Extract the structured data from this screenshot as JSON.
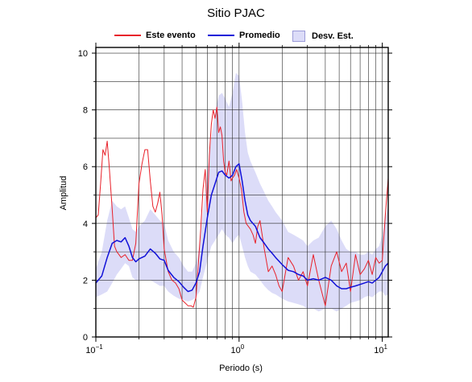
{
  "chart_data": {
    "type": "line",
    "title": "Sitio PJAC",
    "xlabel": "Periodo (s)",
    "ylabel": "Amplitud",
    "x_scale": "log",
    "xlim": [
      0.1,
      11.0
    ],
    "ylim": [
      0,
      10.2
    ],
    "y_ticks": [
      "0",
      "2",
      "4",
      "6",
      "8",
      "10"
    ],
    "x_ticks": [
      {
        "base": "10",
        "exp": "−1",
        "value": 0.1
      },
      {
        "base": "10",
        "exp": "0",
        "value": 1
      },
      {
        "base": "10",
        "exp": "1",
        "value": 10
      }
    ],
    "grid": true,
    "legend_position": "top-center",
    "legend": [
      {
        "label": "Este evento",
        "color": "#e8212a",
        "kind": "line"
      },
      {
        "label": "Promedio",
        "color": "#1010d8",
        "kind": "line"
      },
      {
        "label": "Desv. Est.",
        "color": "#dcdcf8",
        "kind": "band"
      }
    ],
    "series": [
      {
        "name": "Este evento",
        "color": "#e8212a",
        "x": [
          0.1,
          0.104,
          0.108,
          0.112,
          0.116,
          0.12,
          0.124,
          0.13,
          0.135,
          0.14,
          0.145,
          0.15,
          0.16,
          0.17,
          0.18,
          0.19,
          0.2,
          0.21,
          0.22,
          0.23,
          0.24,
          0.25,
          0.26,
          0.27,
          0.28,
          0.29,
          0.3,
          0.32,
          0.34,
          0.36,
          0.38,
          0.4,
          0.42,
          0.44,
          0.46,
          0.48,
          0.5,
          0.52,
          0.54,
          0.56,
          0.58,
          0.6,
          0.62,
          0.64,
          0.66,
          0.68,
          0.7,
          0.72,
          0.74,
          0.76,
          0.78,
          0.8,
          0.82,
          0.85,
          0.88,
          0.9,
          0.93,
          0.96,
          1.0,
          1.04,
          1.08,
          1.12,
          1.16,
          1.2,
          1.25,
          1.3,
          1.35,
          1.4,
          1.5,
          1.6,
          1.7,
          1.8,
          1.9,
          2.0,
          2.2,
          2.4,
          2.6,
          2.8,
          3.0,
          3.3,
          3.6,
          4.0,
          4.4,
          4.8,
          5.2,
          5.6,
          6.0,
          6.5,
          7.0,
          7.5,
          8.0,
          8.5,
          9.0,
          9.5,
          10.0,
          10.5,
          11.0
        ],
        "y": [
          4.2,
          4.3,
          5.4,
          6.6,
          6.4,
          6.9,
          6.0,
          4.5,
          3.2,
          3.0,
          2.9,
          2.8,
          2.9,
          2.7,
          2.7,
          3.3,
          5.4,
          6.1,
          6.6,
          6.6,
          5.5,
          4.6,
          4.4,
          4.7,
          5.1,
          4.3,
          3.1,
          2.3,
          2.0,
          1.9,
          1.7,
          1.3,
          1.2,
          1.1,
          1.1,
          1.05,
          1.4,
          2.6,
          3.8,
          5.2,
          5.9,
          4.4,
          6.4,
          7.5,
          8.0,
          7.7,
          8.1,
          7.2,
          7.4,
          7.1,
          6.2,
          5.8,
          5.7,
          6.2,
          5.5,
          5.6,
          5.7,
          5.9,
          5.6,
          5.2,
          4.4,
          4.0,
          3.9,
          3.8,
          3.6,
          3.3,
          3.9,
          4.1,
          3.1,
          2.3,
          2.5,
          2.2,
          1.8,
          1.6,
          2.8,
          2.5,
          2.0,
          2.3,
          1.8,
          2.9,
          2.0,
          1.1,
          2.5,
          3.0,
          2.3,
          2.6,
          1.6,
          2.9,
          2.2,
          2.4,
          2.7,
          2.2,
          2.8,
          2.6,
          2.7,
          4.3,
          5.6
        ]
      },
      {
        "name": "Promedio",
        "color": "#1010d8",
        "x": [
          0.1,
          0.11,
          0.12,
          0.13,
          0.14,
          0.15,
          0.16,
          0.17,
          0.18,
          0.19,
          0.2,
          0.22,
          0.24,
          0.26,
          0.28,
          0.3,
          0.32,
          0.35,
          0.38,
          0.41,
          0.44,
          0.47,
          0.5,
          0.53,
          0.56,
          0.6,
          0.64,
          0.68,
          0.72,
          0.76,
          0.8,
          0.85,
          0.9,
          0.95,
          1.0,
          1.05,
          1.1,
          1.15,
          1.2,
          1.3,
          1.4,
          1.5,
          1.6,
          1.7,
          1.8,
          2.0,
          2.2,
          2.4,
          2.6,
          2.8,
          3.0,
          3.3,
          3.6,
          4.0,
          4.4,
          4.8,
          5.2,
          5.6,
          6.0,
          6.5,
          7.0,
          7.5,
          8.0,
          8.5,
          9.0,
          9.5,
          10.0,
          10.5,
          11.0
        ],
        "y": [
          1.9,
          2.15,
          2.8,
          3.3,
          3.4,
          3.35,
          3.5,
          3.2,
          2.8,
          2.65,
          2.75,
          2.85,
          3.1,
          2.95,
          2.75,
          2.7,
          2.35,
          2.1,
          1.95,
          1.75,
          1.6,
          1.65,
          1.9,
          2.3,
          3.2,
          4.2,
          5.0,
          5.4,
          5.8,
          5.85,
          5.7,
          5.6,
          5.7,
          6.0,
          6.1,
          5.5,
          4.8,
          4.3,
          4.1,
          3.9,
          3.5,
          3.3,
          3.1,
          2.95,
          2.8,
          2.55,
          2.35,
          2.3,
          2.2,
          2.15,
          2.0,
          2.05,
          2.0,
          2.1,
          2.0,
          1.8,
          1.7,
          1.7,
          1.75,
          1.8,
          1.85,
          1.9,
          1.95,
          1.9,
          2.0,
          2.1,
          2.3,
          2.5,
          2.6
        ]
      }
    ],
    "band": {
      "name": "Desv. Est.",
      "color": "#dcdcf8",
      "x": [
        0.1,
        0.11,
        0.12,
        0.13,
        0.14,
        0.15,
        0.16,
        0.17,
        0.18,
        0.19,
        0.2,
        0.22,
        0.24,
        0.26,
        0.28,
        0.3,
        0.32,
        0.35,
        0.38,
        0.41,
        0.44,
        0.47,
        0.5,
        0.53,
        0.56,
        0.6,
        0.64,
        0.68,
        0.72,
        0.76,
        0.8,
        0.85,
        0.9,
        0.95,
        1.0,
        1.05,
        1.1,
        1.15,
        1.2,
        1.3,
        1.4,
        1.5,
        1.6,
        1.7,
        1.8,
        2.0,
        2.2,
        2.4,
        2.6,
        2.8,
        3.0,
        3.3,
        3.6,
        4.0,
        4.4,
        4.8,
        5.2,
        5.6,
        6.0,
        6.5,
        7.0,
        7.5,
        8.0,
        8.5,
        9.0,
        9.5,
        10.0,
        10.5,
        11.0
      ],
      "upper": [
        2.4,
        3.0,
        4.1,
        4.8,
        4.6,
        4.5,
        4.6,
        4.2,
        3.8,
        3.7,
        3.9,
        4.1,
        4.5,
        4.3,
        4.1,
        4.0,
        3.4,
        3.0,
        2.8,
        2.5,
        2.3,
        2.3,
        2.6,
        3.2,
        4.4,
        5.8,
        7.0,
        7.9,
        8.5,
        8.6,
        8.4,
        8.1,
        8.6,
        9.3,
        9.2,
        8.3,
        7.2,
        6.5,
        6.2,
        5.8,
        5.4,
        5.1,
        4.8,
        4.6,
        4.4,
        4.1,
        3.7,
        3.6,
        3.5,
        3.4,
        3.2,
        3.4,
        3.5,
        3.9,
        4.1,
        3.8,
        3.4,
        3.1,
        3.0,
        3.0,
        2.9,
        2.9,
        3.0,
        2.9,
        3.1,
        3.2,
        3.6,
        4.2,
        4.6
      ],
      "lower": [
        1.4,
        1.5,
        1.6,
        1.9,
        2.2,
        2.4,
        2.6,
        2.5,
        2.1,
        2.0,
        2.0,
        2.0,
        2.0,
        1.9,
        1.8,
        1.8,
        1.6,
        1.45,
        1.35,
        1.3,
        1.25,
        1.3,
        1.4,
        1.6,
        2.1,
        2.7,
        3.2,
        3.4,
        3.6,
        3.8,
        3.6,
        3.5,
        3.3,
        3.5,
        3.6,
        3.2,
        2.8,
        2.5,
        2.3,
        2.2,
        2.0,
        1.8,
        1.65,
        1.55,
        1.5,
        1.35,
        1.25,
        1.2,
        1.15,
        1.1,
        1.0,
        1.0,
        0.9,
        1.0,
        1.0,
        0.9,
        1.0,
        1.1,
        1.2,
        1.25,
        1.3,
        1.4,
        1.45,
        1.4,
        1.5,
        1.6,
        1.6,
        1.45,
        1.5
      ]
    }
  }
}
